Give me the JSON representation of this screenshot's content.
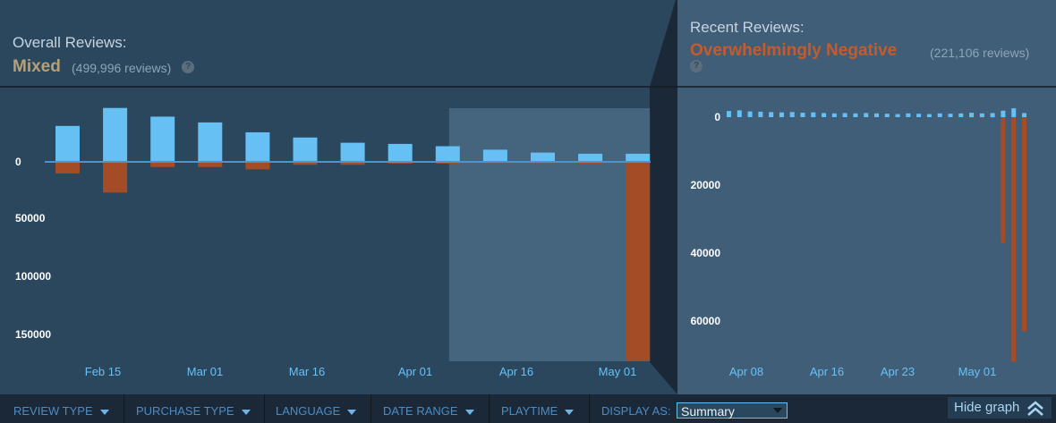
{
  "overall": {
    "title": "Overall Reviews:",
    "score": "Mixed",
    "count": "(499,996 reviews)",
    "help": "?"
  },
  "recent": {
    "title": "Recent Reviews:",
    "score": "Overwhelmingly Negative",
    "count": "(221,106 reviews)",
    "help": "?"
  },
  "colors": {
    "positive": "#66c0f4",
    "negative": "#a34c25",
    "mixed": "#b9a074",
    "overwhelmingly_negative": "#c35c2c"
  },
  "filters": {
    "review_type": "REVIEW TYPE",
    "purchase_type": "PURCHASE TYPE",
    "language": "LANGUAGE",
    "date_range": "DATE RANGE",
    "playtime": "PLAYTIME",
    "display_as_label": "DISPLAY AS:",
    "display_as_value": "Summary",
    "hide_graph": "Hide graph"
  },
  "chart_data": [
    {
      "type": "bar",
      "name": "overall",
      "x_tick_labels": [
        "Feb 15",
        "Mar 01",
        "Mar 16",
        "Apr 01",
        "Apr 16",
        "May 01"
      ],
      "y_tick_labels": [
        "0",
        "50000",
        "100000",
        "150000"
      ],
      "ylim": [
        -47000,
        172000
      ],
      "up_values": [
        31000,
        46500,
        39000,
        34000,
        25500,
        21000,
        16500,
        15500,
        13500,
        10500,
        8000,
        7000,
        7000
      ],
      "down_values": [
        10000,
        26500,
        4500,
        4500,
        6500,
        2500,
        2500,
        1500,
        1500,
        1000,
        1000,
        2000,
        171500
      ],
      "highlight_range_index": [
        9,
        12
      ]
    },
    {
      "type": "bar",
      "name": "recent",
      "x_tick_labels": [
        "Apr 08",
        "Apr 16",
        "Apr 23",
        "May 01"
      ],
      "y_tick_labels": [
        "0",
        "20000",
        "40000",
        "60000"
      ],
      "ylim": [
        -2800,
        72000
      ],
      "up_values": [
        1800,
        2000,
        1700,
        1600,
        1500,
        1400,
        1500,
        1300,
        1400,
        1200,
        1100,
        1200,
        1100,
        1200,
        1100,
        1000,
        900,
        1100,
        1000,
        900,
        1100,
        1000,
        1100,
        1300,
        1100,
        1200,
        1900,
        2600,
        1200
      ],
      "down_values": [
        0,
        0,
        0,
        0,
        0,
        0,
        0,
        0,
        0,
        0,
        0,
        0,
        0,
        0,
        0,
        0,
        0,
        0,
        0,
        0,
        0,
        0,
        0,
        300,
        200,
        300,
        37000,
        72000,
        63000
      ]
    }
  ]
}
